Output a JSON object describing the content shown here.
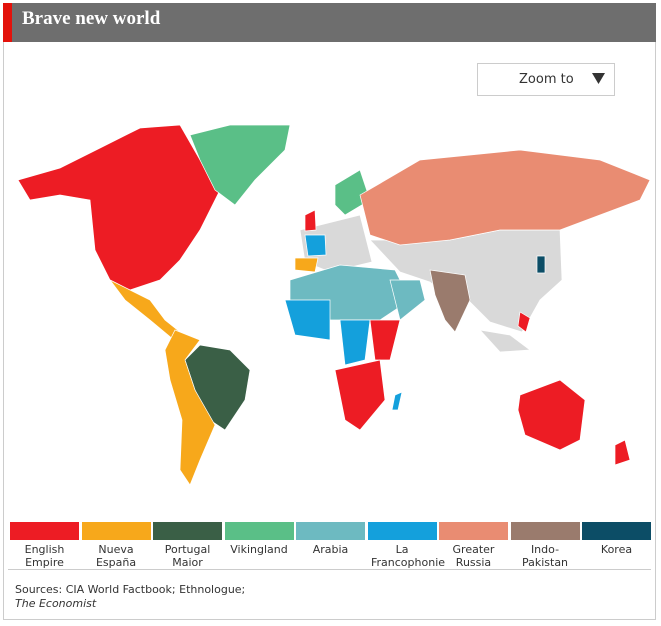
{
  "header": {
    "title": "Brave new world"
  },
  "zoom": {
    "label": "Zoom to"
  },
  "legend": [
    {
      "name": "English Empire",
      "color": "#ed1c24"
    },
    {
      "name": "Nueva España",
      "color": "#f7a81b"
    },
    {
      "name": "Portugal Maior",
      "color": "#3a5f46"
    },
    {
      "name": "Vikingland",
      "color": "#5abf87"
    },
    {
      "name": "Arabia",
      "color": "#6dbac1"
    },
    {
      "name": "La Francophonie",
      "color": "#14a0dc"
    },
    {
      "name": "Greater Russia",
      "color": "#e98c72"
    },
    {
      "name": "Indo-Pakistan",
      "color": "#9a7b6d"
    },
    {
      "name": "Korea",
      "color": "#0c4d66"
    }
  ],
  "sources": {
    "text": "Sources: CIA World Factbook; Ethnologue;",
    "publisher": "The Economist"
  }
}
